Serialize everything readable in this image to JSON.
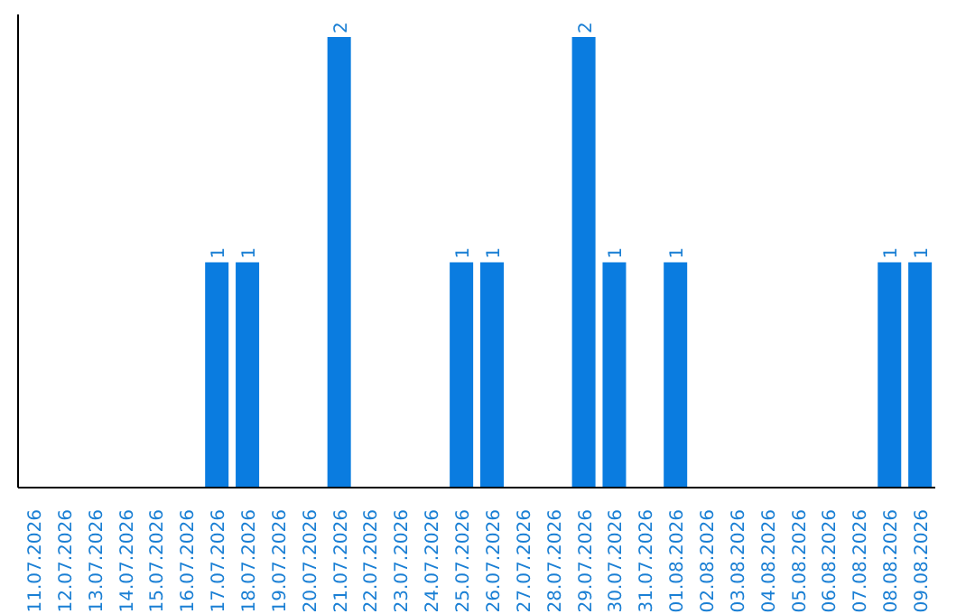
{
  "chart_data": {
    "type": "bar",
    "categories": [
      "11.07.2026",
      "12.07.2026",
      "13.07.2026",
      "14.07.2026",
      "15.07.2026",
      "16.07.2026",
      "17.07.2026",
      "18.07.2026",
      "19.07.2026",
      "20.07.2026",
      "21.07.2026",
      "22.07.2026",
      "23.07.2026",
      "24.07.2026",
      "25.07.2026",
      "26.07.2026",
      "27.07.2026",
      "28.07.2026",
      "29.07.2026",
      "30.07.2026",
      "31.07.2026",
      "01.08.2026",
      "02.08.2026",
      "03.08.2026",
      "04.08.2026",
      "05.08.2026",
      "06.08.2026",
      "07.08.2026",
      "08.08.2026",
      "09.08.2026"
    ],
    "values": [
      0,
      0,
      0,
      0,
      0,
      0,
      1,
      1,
      0,
      0,
      2,
      0,
      0,
      0,
      1,
      1,
      0,
      0,
      2,
      1,
      0,
      1,
      0,
      0,
      0,
      0,
      0,
      0,
      1,
      1
    ],
    "value_labels": [
      null,
      null,
      null,
      null,
      null,
      null,
      "1",
      "1",
      null,
      null,
      "2",
      null,
      null,
      null,
      "1",
      "1",
      null,
      null,
      "2",
      "1",
      null,
      "1",
      null,
      null,
      null,
      null,
      null,
      null,
      "1",
      "1"
    ],
    "color": "#0a7ce0",
    "ylim": [
      0,
      2.1
    ],
    "tick_labels": "x",
    "grid": false,
    "legend": false
  }
}
